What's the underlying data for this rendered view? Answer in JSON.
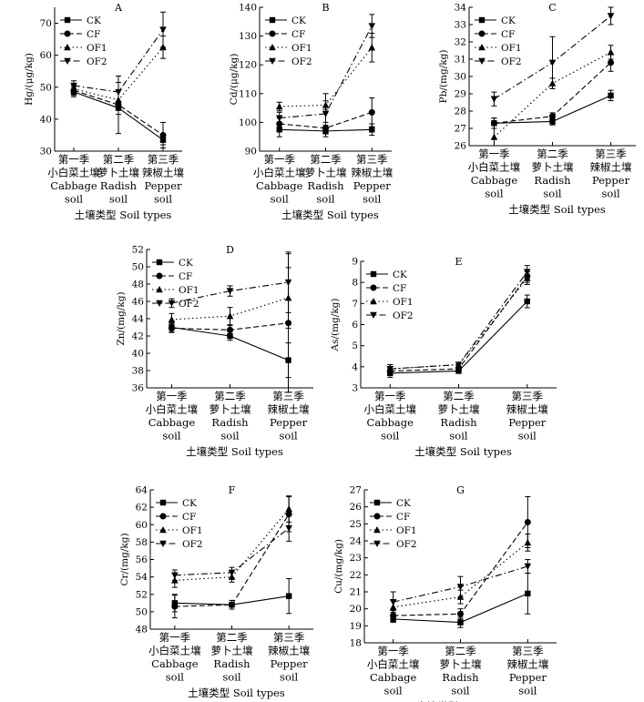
{
  "chart_data": [
    {
      "type": "line",
      "panel": "A",
      "ylabel": "Hg/(μg/kg)",
      "ylim": [
        30,
        75
      ],
      "yticks": [
        30,
        40,
        50,
        60,
        70
      ],
      "categories": [
        [
          "第一季",
          "小白菜土壤",
          "Cabbage",
          "soil"
        ],
        [
          "第二季",
          "萝卜土壤",
          "Radish",
          "soil"
        ],
        [
          "第三季",
          "辣椒土壤",
          "Pepper",
          "soil"
        ]
      ],
      "xlabel": "土壤类型  Soil types",
      "series": [
        {
          "name": "CK",
          "values": [
            48.5,
            43.5,
            33.5
          ],
          "errors": [
            1.5,
            2.0,
            1.5
          ]
        },
        {
          "name": "CF",
          "values": [
            49.0,
            44.5,
            35.0
          ],
          "errors": [
            1.5,
            9.0,
            4.0
          ]
        },
        {
          "name": "OF1",
          "values": [
            49.5,
            46.0,
            62.5
          ],
          "errors": [
            1.5,
            3.0,
            3.5
          ]
        },
        {
          "name": "OF2",
          "values": [
            50.5,
            48.5,
            68.0
          ],
          "errors": [
            1.5,
            3.0,
            5.5
          ]
        }
      ]
    },
    {
      "type": "line",
      "panel": "B",
      "ylabel": "Cd/(μg/kg)",
      "ylim": [
        90,
        140
      ],
      "yticks": [
        90,
        100,
        110,
        120,
        130,
        140
      ],
      "categories": [
        [
          "第一季",
          "小白菜土壤",
          "Cabbage",
          "soil"
        ],
        [
          "第二季",
          "萝卜土壤",
          "Radish",
          "soil"
        ],
        [
          "第三季",
          "辣椒土壤",
          "Pepper",
          "soil"
        ]
      ],
      "xlabel": "土壤类型  Soil types",
      "series": [
        {
          "name": "CK",
          "values": [
            97.5,
            97.0,
            97.5
          ],
          "errors": [
            2.5,
            2.0,
            2.0
          ]
        },
        {
          "name": "CF",
          "values": [
            99.5,
            98.0,
            103.5
          ],
          "errors": [
            2.0,
            2.0,
            5.0
          ]
        },
        {
          "name": "OF1",
          "values": [
            105.5,
            106.0,
            126.0
          ],
          "errors": [
            1.5,
            1.5,
            5.0
          ]
        },
        {
          "name": "OF2",
          "values": [
            101.5,
            103.0,
            133.5
          ],
          "errors": [
            2.0,
            7.0,
            4.0
          ]
        }
      ]
    },
    {
      "type": "line",
      "panel": "C",
      "ylabel": "Pb/(mg/kg)",
      "ylim": [
        26,
        34
      ],
      "yticks": [
        26,
        27,
        28,
        29,
        30,
        31,
        32,
        33,
        34
      ],
      "categories": [
        [
          "第一季",
          "小白菜土壤",
          "Cabbage",
          "soil"
        ],
        [
          "第二季",
          "萝卜土壤",
          "Radish",
          "soil"
        ],
        [
          "第三季",
          "辣椒土壤",
          "Pepper",
          "soil"
        ]
      ],
      "xlabel": "土壤类型  Soil types",
      "series": [
        {
          "name": "CK",
          "values": [
            27.3,
            27.4,
            28.9
          ],
          "errors": [
            0.3,
            0.2,
            0.3
          ]
        },
        {
          "name": "CF",
          "values": [
            27.3,
            27.7,
            30.8
          ],
          "errors": [
            0.3,
            0.2,
            0.5
          ]
        },
        {
          "name": "OF1",
          "values": [
            26.5,
            29.6,
            31.4
          ],
          "errors": [
            0.5,
            0.3,
            0.4
          ]
        },
        {
          "name": "OF2",
          "values": [
            28.7,
            30.8,
            33.5
          ],
          "errors": [
            0.4,
            1.5,
            0.5
          ]
        }
      ]
    },
    {
      "type": "line",
      "panel": "D",
      "ylabel": "Zn/(mg/kg)",
      "ylim": [
        36,
        52
      ],
      "yticks": [
        36,
        38,
        40,
        42,
        44,
        46,
        48,
        50,
        52
      ],
      "categories": [
        [
          "第一季",
          "小白菜土壤",
          "Cabbage",
          "soil"
        ],
        [
          "第二季",
          "萝卜土壤",
          "Radish",
          "soil"
        ],
        [
          "第三季",
          "辣椒土壤",
          "Pepper",
          "soil"
        ]
      ],
      "xlabel": "土壤类型  Soil types",
      "series": [
        {
          "name": "CK",
          "values": [
            43.0,
            42.0,
            39.2
          ],
          "errors": [
            0.5,
            0.5,
            2.0
          ]
        },
        {
          "name": "CF",
          "values": [
            42.9,
            42.7,
            43.5
          ],
          "errors": [
            0.5,
            0.5,
            8.0
          ]
        },
        {
          "name": "OF1",
          "values": [
            43.9,
            44.3,
            46.4
          ],
          "errors": [
            0.7,
            1.0,
            3.5
          ]
        },
        {
          "name": "OF2",
          "values": [
            45.8,
            47.2,
            48.2
          ],
          "errors": [
            0.5,
            0.6,
            3.5
          ]
        }
      ]
    },
    {
      "type": "line",
      "panel": "E",
      "ylabel": "As/(mg/kg)",
      "ylim": [
        3,
        9
      ],
      "yticks": [
        3,
        4,
        5,
        6,
        7,
        8,
        9
      ],
      "categories": [
        [
          "第一季",
          "小白菜土壤",
          "Cabbage",
          "soil"
        ],
        [
          "第二季",
          "萝卜土壤",
          "Radish",
          "soil"
        ],
        [
          "第三季",
          "辣椒土壤",
          "Pepper",
          "soil"
        ]
      ],
      "xlabel": "土壤类型  Soil types",
      "series": [
        {
          "name": "CK",
          "values": [
            3.7,
            3.8,
            7.1
          ],
          "errors": [
            0.2,
            0.1,
            0.3
          ]
        },
        {
          "name": "CF",
          "values": [
            3.8,
            3.9,
            8.3
          ],
          "errors": [
            0.2,
            0.1,
            0.3
          ]
        },
        {
          "name": "OF1",
          "values": [
            3.9,
            4.1,
            8.2
          ],
          "errors": [
            0.2,
            0.1,
            0.3
          ]
        },
        {
          "name": "OF2",
          "values": [
            3.9,
            4.1,
            8.5
          ],
          "errors": [
            0.2,
            0.1,
            0.3
          ]
        }
      ]
    },
    {
      "type": "line",
      "panel": "F",
      "ylabel": "Cr/(mg/kg)",
      "ylim": [
        48,
        64
      ],
      "yticks": [
        48,
        50,
        52,
        54,
        56,
        58,
        60,
        62,
        64
      ],
      "categories": [
        [
          "第一季",
          "小白菜土壤",
          "Cabbage",
          "soil"
        ],
        [
          "第二季",
          "萝卜土壤",
          "Radish",
          "soil"
        ],
        [
          "第三季",
          "辣椒土壤",
          "Pepper",
          "soil"
        ]
      ],
      "xlabel": "土壤类型  Soil types",
      "series": [
        {
          "name": "CK",
          "values": [
            51.0,
            50.8,
            51.8
          ],
          "errors": [
            1.0,
            0.5,
            2.0
          ]
        },
        {
          "name": "CF",
          "values": [
            50.6,
            50.8,
            61.2
          ],
          "errors": [
            1.3,
            0.5,
            2.0
          ]
        },
        {
          "name": "OF1",
          "values": [
            53.6,
            54.0,
            61.8
          ],
          "errors": [
            0.8,
            0.6,
            1.5
          ]
        },
        {
          "name": "OF2",
          "values": [
            54.2,
            54.5,
            59.6
          ],
          "errors": [
            0.6,
            0.6,
            1.5
          ]
        }
      ]
    },
    {
      "type": "line",
      "panel": "G",
      "ylabel": "Cu/(mg/kg)",
      "ylim": [
        18,
        27
      ],
      "yticks": [
        18,
        19,
        20,
        21,
        22,
        23,
        24,
        25,
        26,
        27
      ],
      "categories": [
        [
          "第一季",
          "小白菜土壤",
          "Cabbage",
          "soil"
        ],
        [
          "第二季",
          "萝卜土壤",
          "Radish",
          "soil"
        ],
        [
          "第三季",
          "辣椒土壤",
          "Pepper",
          "soil"
        ]
      ],
      "xlabel": "土壤类型  Soil types",
      "series": [
        {
          "name": "CK",
          "values": [
            19.4,
            19.2,
            20.9
          ],
          "errors": [
            0.2,
            0.3,
            1.2
          ]
        },
        {
          "name": "CF",
          "values": [
            19.6,
            19.7,
            25.1
          ],
          "errors": [
            0.3,
            0.3,
            1.5
          ]
        },
        {
          "name": "OF1",
          "values": [
            20.1,
            20.7,
            23.9
          ],
          "errors": [
            0.4,
            0.4,
            0.5
          ]
        },
        {
          "name": "OF2",
          "values": [
            20.4,
            21.3,
            22.5
          ],
          "errors": [
            0.6,
            0.6,
            0.4
          ]
        }
      ]
    }
  ]
}
